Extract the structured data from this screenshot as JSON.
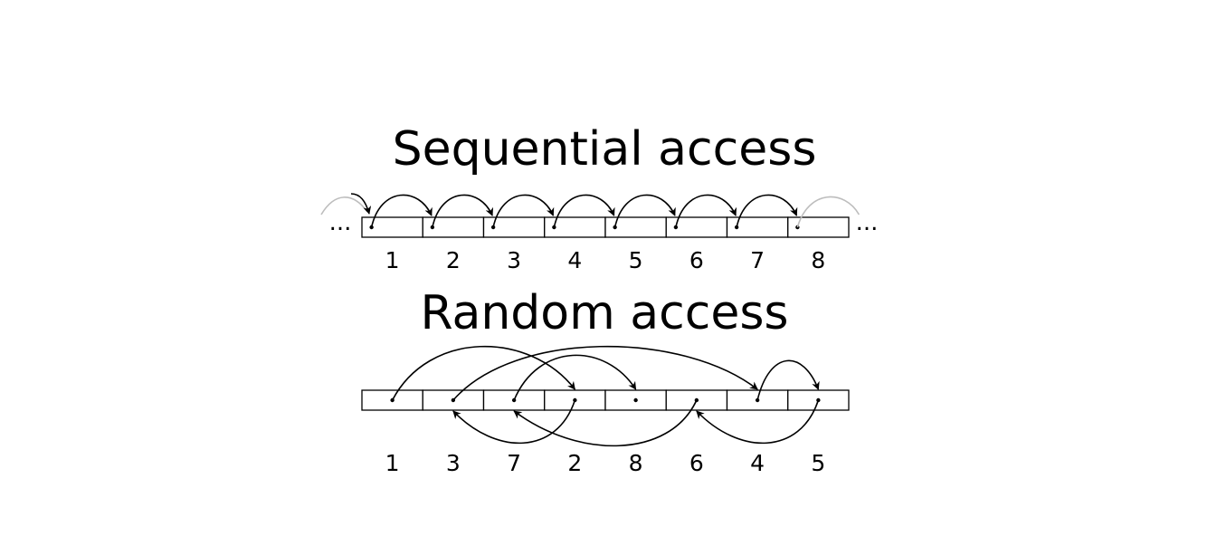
{
  "sequential": {
    "title": "Sequential access",
    "labels": [
      "1",
      "2",
      "3",
      "4",
      "5",
      "6",
      "7",
      "8"
    ],
    "leading_ellipsis": "...",
    "trailing_ellipsis": "..."
  },
  "random": {
    "title": "Random access",
    "labels": [
      "1",
      "3",
      "7",
      "2",
      "8",
      "6",
      "4",
      "5"
    ]
  },
  "colors": {
    "stroke": "#000000",
    "faded": "#bdbdbd",
    "background": "#ffffff"
  }
}
